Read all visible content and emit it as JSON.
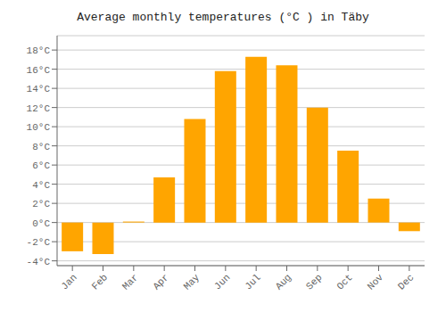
{
  "chart_data": {
    "type": "bar",
    "title": "Average monthly temperatures (°C ) in Täby",
    "categories": [
      "Jan",
      "Feb",
      "Mar",
      "Apr",
      "May",
      "Jun",
      "Jul",
      "Aug",
      "Sep",
      "Oct",
      "Nov",
      "Dec"
    ],
    "values": [
      -3.0,
      -3.3,
      0.1,
      4.7,
      10.8,
      15.8,
      17.3,
      16.4,
      12.0,
      7.5,
      2.5,
      -0.9
    ],
    "color": "#FFA500",
    "ylim": [
      -4.5,
      19.5
    ],
    "yticks": [
      {
        "value": -4,
        "label": "-4°C"
      },
      {
        "value": -2,
        "label": "-2°C"
      },
      {
        "value": 0,
        "label": "0°C"
      },
      {
        "value": 2,
        "label": "2°C"
      },
      {
        "value": 4,
        "label": "4°C"
      },
      {
        "value": 6,
        "label": "6°C"
      },
      {
        "value": 8,
        "label": "8°C"
      },
      {
        "value": 10,
        "label": "10°C"
      },
      {
        "value": 12,
        "label": "12°C"
      },
      {
        "value": 14,
        "label": "14°C"
      },
      {
        "value": 16,
        "label": "16°C"
      },
      {
        "value": 18,
        "label": "18°C"
      }
    ],
    "grid": true
  }
}
